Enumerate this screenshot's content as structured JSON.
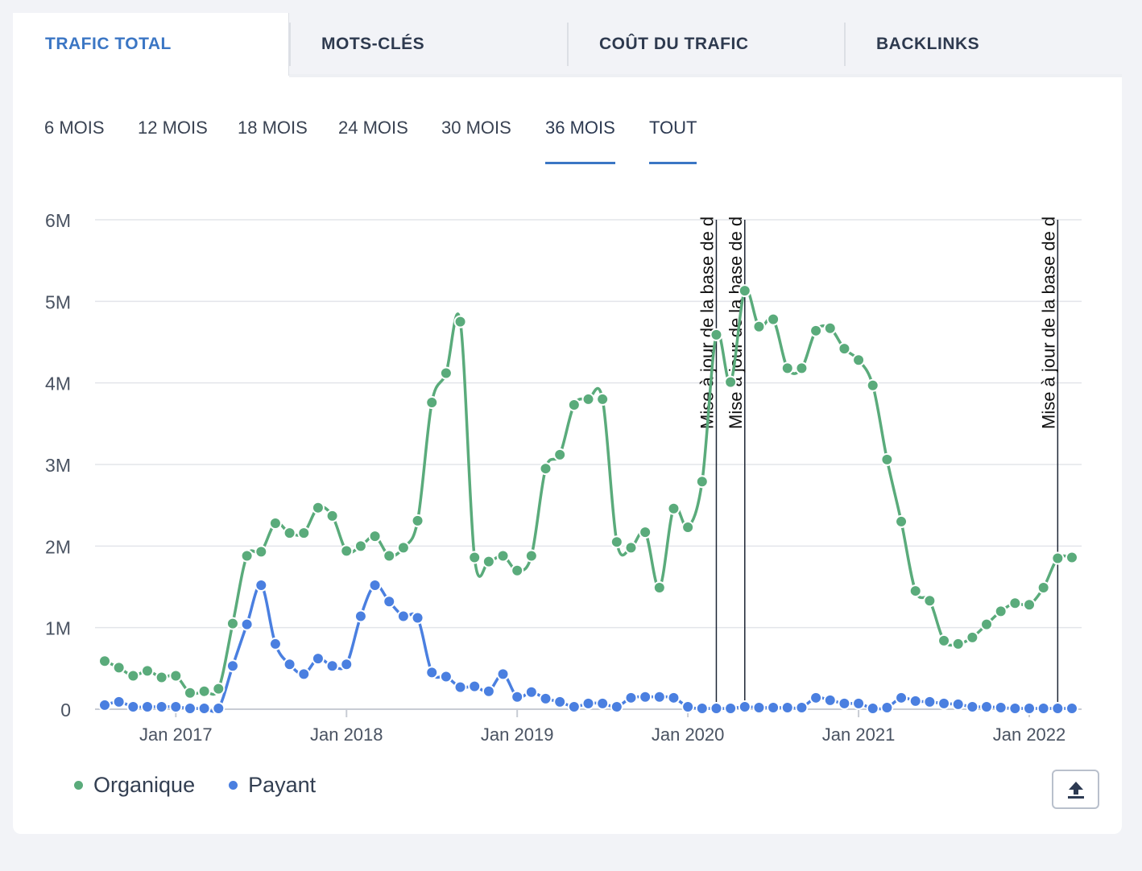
{
  "tabs": [
    {
      "label": "TRAFIC TOTAL",
      "active": true
    },
    {
      "label": "MOTS-CLÉS",
      "active": false
    },
    {
      "label": "COÛT DU TRAFIC",
      "active": false
    },
    {
      "label": "BACKLINKS",
      "active": false
    }
  ],
  "periods": [
    {
      "label": "6 MOIS",
      "active": false
    },
    {
      "label": "12 MOIS",
      "active": false
    },
    {
      "label": "18 MOIS",
      "active": false
    },
    {
      "label": "24 MOIS",
      "active": false
    },
    {
      "label": "30 MOIS",
      "active": false
    },
    {
      "label": "36 MOIS",
      "active": false
    },
    {
      "label": "TOUT",
      "active": true
    }
  ],
  "legend": [
    {
      "label": "Organique",
      "color": "#5aab7b"
    },
    {
      "label": "Payant",
      "color": "#4a7fe0"
    }
  ],
  "export_icon": "upload-arrow-icon",
  "colors": {
    "accent": "#3b76c4",
    "organic": "#5aab7b",
    "paid": "#4a7fe0"
  },
  "chart_data": {
    "type": "line",
    "x_start": "2016-08",
    "x_step": "month",
    "x_ticks": [
      {
        "date": "2017-01",
        "label": "Jan 2017"
      },
      {
        "date": "2018-01",
        "label": "Jan 2018"
      },
      {
        "date": "2019-01",
        "label": "Jan 2019"
      },
      {
        "date": "2020-01",
        "label": "Jan 2020"
      },
      {
        "date": "2021-01",
        "label": "Jan 2021"
      },
      {
        "date": "2022-01",
        "label": "Jan 2022"
      }
    ],
    "y_ticks": [
      {
        "value": 0,
        "label": "0"
      },
      {
        "value": 1000000,
        "label": "1M"
      },
      {
        "value": 2000000,
        "label": "2M"
      },
      {
        "value": 3000000,
        "label": "3M"
      },
      {
        "value": 4000000,
        "label": "4M"
      },
      {
        "value": 5000000,
        "label": "5M"
      },
      {
        "value": 6000000,
        "label": "6M"
      }
    ],
    "ylim": [
      0,
      6000000
    ],
    "grid": true,
    "series": [
      {
        "name": "Organique",
        "color": "#5aab7b",
        "values": [
          590000,
          510000,
          410000,
          470000,
          390000,
          410000,
          200000,
          220000,
          250000,
          1050000,
          1880000,
          1930000,
          2280000,
          2160000,
          2160000,
          2470000,
          2370000,
          1940000,
          2000000,
          2120000,
          1880000,
          1980000,
          2310000,
          3760000,
          4120000,
          4750000,
          1860000,
          1810000,
          1880000,
          1700000,
          1880000,
          2950000,
          3120000,
          3730000,
          3800000,
          3800000,
          2050000,
          1980000,
          2170000,
          1490000,
          2460000,
          2230000,
          2790000,
          4590000,
          4010000,
          5130000,
          4690000,
          4780000,
          4180000,
          4180000,
          4640000,
          4670000,
          4420000,
          4280000,
          3970000,
          3060000,
          2300000,
          1450000,
          1330000,
          840000,
          800000,
          880000,
          1040000,
          1200000,
          1300000,
          1280000,
          1490000,
          1850000,
          1860000
        ]
      },
      {
        "name": "Payant",
        "color": "#4a7fe0",
        "values": [
          50000,
          90000,
          30000,
          30000,
          30000,
          30000,
          10000,
          10000,
          10000,
          530000,
          1040000,
          1520000,
          800000,
          550000,
          430000,
          620000,
          530000,
          550000,
          1140000,
          1520000,
          1320000,
          1140000,
          1120000,
          450000,
          400000,
          270000,
          280000,
          220000,
          430000,
          150000,
          210000,
          130000,
          90000,
          30000,
          70000,
          70000,
          30000,
          140000,
          150000,
          150000,
          140000,
          30000,
          10000,
          10000,
          10000,
          30000,
          20000,
          20000,
          20000,
          20000,
          140000,
          110000,
          70000,
          70000,
          10000,
          20000,
          140000,
          100000,
          90000,
          70000,
          60000,
          30000,
          30000,
          20000,
          10000,
          10000,
          10000,
          10000,
          10000
        ]
      }
    ],
    "annotations": [
      {
        "date": "2020-03",
        "label": "Mise à jour de la base de d"
      },
      {
        "date": "2020-05",
        "label": "Mise à jour de la base de d"
      },
      {
        "date": "2022-03",
        "label": "Mise à jour de la base de d"
      }
    ]
  }
}
